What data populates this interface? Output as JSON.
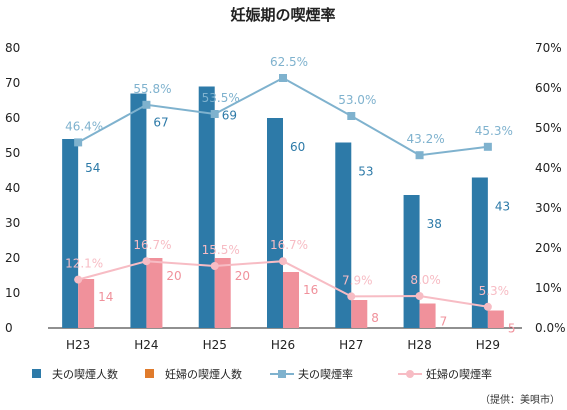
{
  "chart_data": {
    "type": "bar",
    "title": "妊娠期の喫煙率",
    "categories": [
      "H23",
      "H24",
      "H25",
      "H26",
      "H27",
      "H28",
      "H29"
    ],
    "y_left": {
      "lim": [
        0,
        80
      ],
      "ticks": [
        "0",
        "10",
        "20",
        "30",
        "40",
        "50",
        "60",
        "70",
        "80"
      ]
    },
    "y_right": {
      "lim": [
        0,
        70
      ],
      "ticks": [
        "0.0%",
        "10%",
        "20%",
        "30%",
        "40%",
        "50%",
        "60%",
        "70%"
      ]
    },
    "series": [
      {
        "name": "夫の喫煙人数",
        "kind": "bar",
        "axis": "left",
        "color": "#2d7aa8",
        "values": [
          54,
          67,
          69,
          60,
          53,
          38,
          43
        ],
        "labels": [
          "54",
          "67",
          "69",
          "60",
          "53",
          "38",
          "43"
        ]
      },
      {
        "name": "妊婦の喫煙人数",
        "kind": "bar",
        "axis": "left",
        "color": "#f0919b",
        "values": [
          14,
          20,
          20,
          16,
          8,
          7,
          5
        ],
        "labels": [
          "14",
          "20",
          "20",
          "16",
          "8",
          "7",
          "5"
        ]
      },
      {
        "name": "夫の喫煙率",
        "kind": "line",
        "axis": "right",
        "color": "#7fb2ce",
        "marker": "square",
        "values": [
          46.4,
          55.8,
          53.5,
          62.5,
          53.0,
          43.2,
          45.3
        ],
        "labels": [
          "46.4%",
          "55.8%",
          "53.5%",
          "62.5%",
          "53.0%",
          "43.2%",
          "45.3%"
        ]
      },
      {
        "name": "妊婦の喫煙率",
        "kind": "line",
        "axis": "right",
        "color": "#f7bcc4",
        "marker": "circle",
        "values": [
          12.1,
          16.7,
          15.5,
          16.7,
          7.9,
          8.0,
          5.3
        ],
        "labels": [
          "12.1%",
          "16.7%",
          "15.5%",
          "16.7%",
          "7.9%",
          "8.0%",
          "5.3%"
        ]
      }
    ],
    "legend": {
      "position": "bottom",
      "items": [
        {
          "name": "夫の喫煙人数",
          "symbol": "square",
          "color": "#2d7aa8"
        },
        {
          "name": "妊婦の喫煙人数",
          "symbol": "square",
          "color": "#e07b2c"
        },
        {
          "name": "夫の喫煙率",
          "symbol": "line-square",
          "color": "#7fb2ce"
        },
        {
          "name": "妊婦の喫煙率",
          "symbol": "line-circle",
          "color": "#f7bcc4"
        }
      ]
    },
    "grid": false
  },
  "source_note": "（提供：美唄市）"
}
